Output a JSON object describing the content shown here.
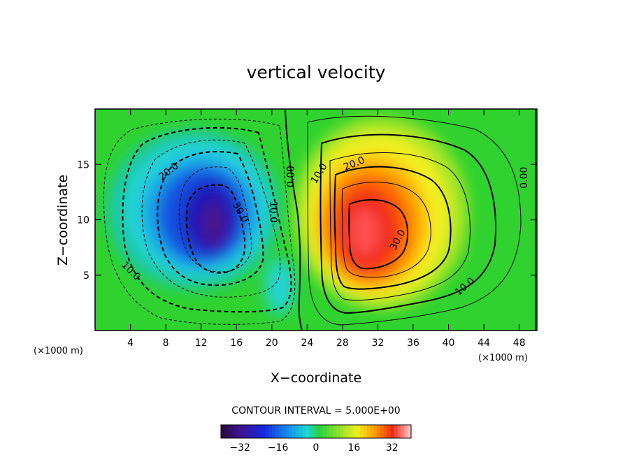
{
  "chart_data": {
    "type": "contour",
    "title": "vertical velocity",
    "xlabel": "X−coordinate",
    "ylabel": "Z−coordinate",
    "x_unit_left": "(×1000 m)",
    "x_unit_right": "(×1000 m)",
    "xlim": [
      0,
      50
    ],
    "ylim": [
      0,
      20
    ],
    "x_ticks": [
      4,
      8,
      12,
      16,
      20,
      24,
      28,
      32,
      36,
      40,
      44,
      48
    ],
    "y_ticks": [
      5,
      10,
      15
    ],
    "contour_interval_text": "CONTOUR INTERVAL = 5.000E+00",
    "colorbar": {
      "range": [
        -40,
        40
      ],
      "ticks": [
        -32,
        -16,
        0,
        16,
        32
      ],
      "tick_labels": [
        "−32",
        "−16",
        "0",
        "16",
        "32"
      ]
    },
    "extrema": [
      {
        "kind": "minimum",
        "x": 13.6,
        "z": 9.0,
        "value": -37
      },
      {
        "kind": "maximum",
        "x": 31.0,
        "z": 8.6,
        "value": 37
      }
    ],
    "contour_labels": [
      {
        "text": "20.0",
        "x": 8.3,
        "z": 14.4,
        "angle": -38
      },
      {
        "text": "30.0",
        "x": 16.5,
        "z": 10.7,
        "angle": 60
      },
      {
        "text": "10.0",
        "x": 20.2,
        "z": 10.7,
        "angle": 90
      },
      {
        "text": "0.00",
        "x": 22.1,
        "z": 13.9,
        "angle": -90
      },
      {
        "text": "10.0",
        "x": 4.1,
        "z": 5.4,
        "angle": 45
      },
      {
        "text": "10.0",
        "x": 25.3,
        "z": 14.2,
        "angle": -58
      },
      {
        "text": "20.0",
        "x": 29.3,
        "z": 15.1,
        "angle": -22
      },
      {
        "text": "30.0",
        "x": 34.2,
        "z": 8.2,
        "angle": -62
      },
      {
        "text": "10.0",
        "x": 41.8,
        "z": 4.0,
        "angle": -40
      },
      {
        "text": "0.00",
        "x": 48.5,
        "z": 13.8,
        "angle": -90
      }
    ],
    "colors": {
      "colorbar_low": "#2a0a44",
      "colorbar_high": "#ffc0c0",
      "frame": "#000000"
    }
  }
}
